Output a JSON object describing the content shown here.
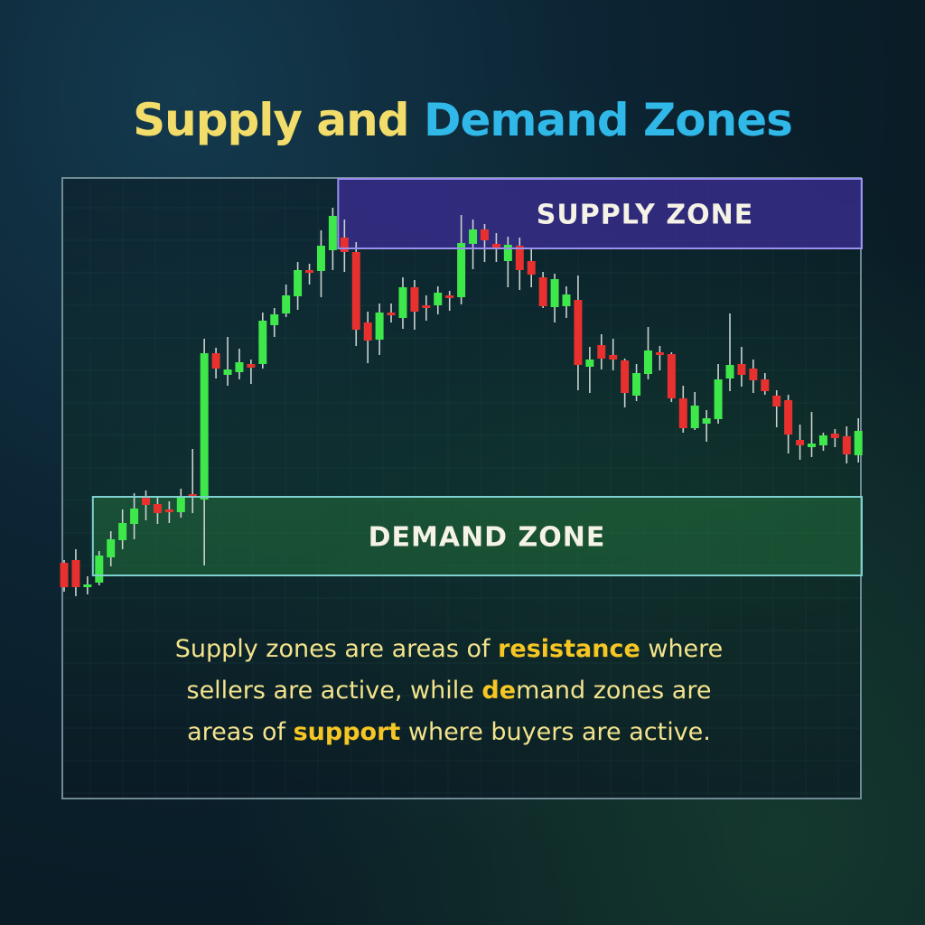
{
  "title": {
    "part1": "Supply and",
    "part2": "Demand Zones",
    "color1": "#f2dc6a",
    "color2": "#2fb8e8"
  },
  "chart_data": {
    "type": "candlestick",
    "title": "Supply and Demand Zones",
    "axes_shown": false,
    "grid": true,
    "colors": {
      "up": "#3ee84a",
      "down": "#e8302e",
      "supply_zone": "#3b2f8c",
      "demand_zone": "#1f5a3a"
    },
    "zones": [
      {
        "label": "SUPPLY ZONE",
        "price_low": 425,
        "price_high": 502,
        "start_index": 24
      },
      {
        "label": "DEMAND ZONE",
        "price_low": 63,
        "price_high": 150,
        "start_index": 3
      }
    ],
    "candles_ohlc": [
      [
        77,
        80,
        45,
        50
      ],
      [
        80,
        92,
        40,
        50
      ],
      [
        52,
        62,
        42,
        53
      ],
      [
        55,
        90,
        52,
        85
      ],
      [
        83,
        112,
        73,
        103
      ],
      [
        102,
        136,
        92,
        121
      ],
      [
        120,
        154,
        103,
        137
      ],
      [
        151,
        157,
        124,
        141
      ],
      [
        142,
        150,
        120,
        132
      ],
      [
        136,
        145,
        121,
        135
      ],
      [
        133,
        159,
        127,
        151
      ],
      [
        153,
        203,
        132,
        150
      ],
      [
        147,
        325,
        74,
        309
      ],
      [
        309,
        315,
        281,
        292
      ],
      [
        285,
        327,
        273,
        291
      ],
      [
        288,
        314,
        280,
        299
      ],
      [
        297,
        302,
        275,
        293
      ],
      [
        297,
        354,
        292,
        345
      ],
      [
        340,
        359,
        327,
        352
      ],
      [
        353,
        385,
        349,
        373
      ],
      [
        372,
        410,
        357,
        401
      ],
      [
        401,
        408,
        385,
        400
      ],
      [
        400,
        445,
        371,
        428
      ],
      [
        423,
        470,
        401,
        461
      ],
      [
        437,
        457,
        399,
        421
      ],
      [
        421,
        432,
        317,
        335
      ],
      [
        343,
        355,
        298,
        323
      ],
      [
        324,
        364,
        307,
        354
      ],
      [
        354,
        364,
        343,
        353
      ],
      [
        348,
        393,
        336,
        382
      ],
      [
        382,
        390,
        335,
        355
      ],
      [
        362,
        373,
        345,
        361
      ],
      [
        362,
        383,
        352,
        376
      ],
      [
        373,
        378,
        356,
        372
      ],
      [
        371,
        462,
        363,
        431
      ],
      [
        430,
        457,
        402,
        446
      ],
      [
        446,
        452,
        410,
        434
      ],
      [
        430,
        442,
        410,
        426
      ],
      [
        411,
        438,
        382,
        429
      ],
      [
        428,
        437,
        379,
        401
      ],
      [
        411,
        424,
        382,
        396
      ],
      [
        393,
        399,
        359,
        361
      ],
      [
        360,
        397,
        343,
        391
      ],
      [
        361,
        383,
        348,
        374
      ],
      [
        368,
        395,
        268,
        296
      ],
      [
        294,
        316,
        265,
        302
      ],
      [
        318,
        330,
        291,
        303
      ],
      [
        307,
        325,
        290,
        302
      ],
      [
        301,
        303,
        249,
        265
      ],
      [
        262,
        297,
        256,
        287
      ],
      [
        286,
        338,
        280,
        312
      ],
      [
        310,
        317,
        290,
        309
      ],
      [
        308,
        310,
        255,
        259
      ],
      [
        259,
        273,
        221,
        226
      ],
      [
        226,
        266,
        224,
        251
      ],
      [
        231,
        246,
        211,
        237
      ],
      [
        236,
        297,
        231,
        280
      ],
      [
        281,
        353,
        267,
        296
      ],
      [
        297,
        316,
        272,
        285
      ],
      [
        292,
        302,
        265,
        279
      ],
      [
        280,
        287,
        263,
        267
      ],
      [
        262,
        268,
        227,
        250
      ],
      [
        257,
        263,
        198,
        219
      ],
      [
        213,
        230,
        191,
        207
      ],
      [
        205,
        244,
        194,
        209
      ],
      [
        207,
        221,
        201,
        218
      ],
      [
        220,
        225,
        205,
        215
      ],
      [
        217,
        228,
        187,
        197
      ],
      [
        196,
        237,
        188,
        223
      ]
    ]
  },
  "description": {
    "l1a": "Supply zones are areas of ",
    "l1b": "resistance",
    "l1c": " where",
    "l2a": "sellers are active, while ",
    "l2b": "de",
    "l2c": "mand zones are",
    "l3a": "areas of ",
    "l3b": "support",
    "l3c": " where buyers are active."
  }
}
